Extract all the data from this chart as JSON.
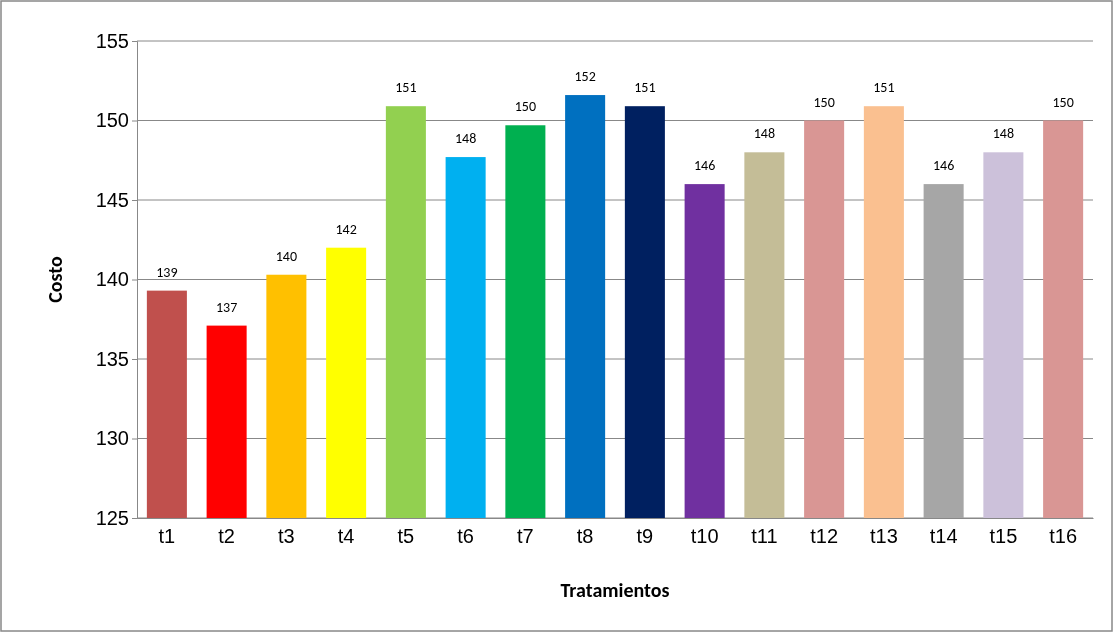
{
  "chart_data": {
    "type": "bar",
    "xlabel": "Tratamientos",
    "ylabel": "Costo",
    "categories": [
      "t1",
      "t2",
      "t3",
      "t4",
      "t5",
      "t6",
      "t7",
      "t8",
      "t9",
      "t10",
      "t11",
      "t12",
      "t13",
      "t14",
      "t15",
      "t16"
    ],
    "values": [
      139.3,
      137.1,
      140.3,
      142.0,
      150.9,
      147.7,
      149.7,
      151.6,
      150.9,
      146.0,
      148.0,
      150.0,
      150.9,
      146.0,
      148.0,
      150.0
    ],
    "value_labels": [
      "139",
      "137",
      "140",
      "142",
      "151",
      "148",
      "150",
      "152",
      "151",
      "146",
      "148",
      "150",
      "151",
      "146",
      "148",
      "150"
    ],
    "colors": [
      "#c0504d",
      "#ff0000",
      "#ffc000",
      "#ffff00",
      "#92d050",
      "#00b0f0",
      "#00b050",
      "#0070c0",
      "#002060",
      "#7030a0",
      "#c4bd97",
      "#d99694",
      "#fac090",
      "#a6a6a6",
      "#ccc1da",
      "#d99694"
    ],
    "ylim": [
      125,
      155
    ],
    "yticks": [
      125,
      130,
      135,
      140,
      145,
      150,
      155
    ],
    "grid": "y"
  }
}
